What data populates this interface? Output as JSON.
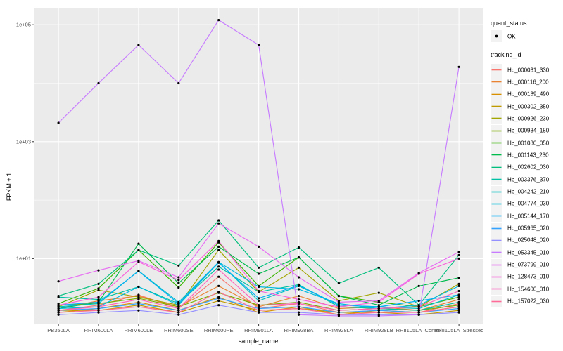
{
  "figure": {
    "background": "#FFFFFF",
    "panel_bg": "#EBEBEB",
    "grid_color": "#FFFFFF",
    "tick_color": "#333333",
    "tick_label_color": "#4D4D4D",
    "point_color": "#000000",
    "legend_key_bg": "#F2F2F2"
  },
  "axes": {
    "x": {
      "title": "sample_name"
    },
    "y": {
      "title": "FPKM + 1",
      "ticks": [
        {
          "label": "1e+05",
          "value": 100000
        },
        {
          "label": "1e+03",
          "value": 1000
        },
        {
          "label": "1e+01",
          "value": 10
        }
      ],
      "minor": [
        1,
        100,
        10000
      ]
    }
  },
  "legend": {
    "quant_status": {
      "title": "quant_status",
      "items": [
        {
          "label": "OK",
          "symbol": "black-point"
        }
      ]
    },
    "tracking_id": {
      "title": "tracking_id"
    }
  },
  "chart_data": {
    "type": "line",
    "title": "",
    "xlabel": "sample_name",
    "ylabel": "FPKM + 1",
    "y_scale": "log10",
    "ylim": [
      0.77,
      195000
    ],
    "grid": true,
    "legend_position": "right",
    "quant_status_all_points": "OK",
    "x_categories": [
      "PB350LA",
      "RRIM600LA",
      "RRIM600LE",
      "RRIM600SE",
      "RRIM600PE",
      "RRIM901LA",
      "RRIM928BA",
      "RRIM928LA",
      "RRIM928LB",
      "RRII105LA_Control",
      "RRII105LA_Stressed"
    ],
    "series": [
      {
        "name": "Hb_000031_330",
        "color": "#F8766D",
        "values": [
          1.3,
          1.6,
          2.4,
          1.4,
          4.9,
          1.4,
          1.7,
          1.2,
          1.3,
          1.2,
          1.7
        ]
      },
      {
        "name": "Hb_000116_200",
        "color": "#EA8331",
        "values": [
          1.4,
          1.9,
          2.3,
          1.5,
          3.4,
          1.5,
          2.3,
          1.4,
          1.5,
          1.3,
          2.0
        ]
      },
      {
        "name": "Hb_000139_490",
        "color": "#D89000",
        "values": [
          1.2,
          1.4,
          1.8,
          1.3,
          2.2,
          1.2,
          1.5,
          1.1,
          1.3,
          1.2,
          1.5
        ]
      },
      {
        "name": "Hb_000302_350",
        "color": "#C09B00",
        "values": [
          1.3,
          1.3,
          1.6,
          1.2,
          1.9,
          1.3,
          1.4,
          1.2,
          1.2,
          1.1,
          1.3
        ]
      },
      {
        "name": "Hb_000926_230",
        "color": "#A3A500",
        "values": [
          1.5,
          2.9,
          2.2,
          1.6,
          14,
          2.7,
          7.0,
          1.9,
          2.6,
          1.5,
          3.7
        ]
      },
      {
        "name": "Hb_000934_150",
        "color": "#7CAE00",
        "values": [
          1.6,
          1.7,
          2.1,
          1.5,
          2.6,
          1.6,
          1.8,
          1.3,
          1.4,
          1.3,
          1.6
        ]
      },
      {
        "name": "Hb_001080_050",
        "color": "#39B600",
        "values": [
          1.7,
          3.1,
          14,
          3.2,
          19,
          3.4,
          10.5,
          2.3,
          1.8,
          1.5,
          2.2
        ]
      },
      {
        "name": "Hb_001143_230",
        "color": "#00BB4E",
        "values": [
          1.4,
          1.8,
          18,
          3.8,
          16,
          5.5,
          10.5,
          2.3,
          1.6,
          3.4,
          4.7
        ]
      },
      {
        "name": "Hb_002602_030",
        "color": "#00BF7D",
        "values": [
          2.3,
          3.7,
          14,
          7.6,
          45,
          7.0,
          15.5,
          3.8,
          7.0,
          1.6,
          11.5
        ]
      },
      {
        "name": "Hb_003376_370",
        "color": "#00C1A3",
        "values": [
          2.2,
          2.0,
          3.3,
          1.7,
          7.3,
          2.7,
          3.6,
          1.5,
          1.4,
          1.3,
          1.8
        ]
      },
      {
        "name": "Hb_004242_210",
        "color": "#00BFC4",
        "values": [
          1.5,
          1.7,
          6.2,
          1.8,
          8.7,
          1.9,
          3.4,
          1.6,
          1.5,
          1.4,
          2.4
        ]
      },
      {
        "name": "Hb_004774_030",
        "color": "#00BAE0",
        "values": [
          1.4,
          1.5,
          3.3,
          1.6,
          8.7,
          3.3,
          3.0,
          1.7,
          1.4,
          1.6,
          3.4
        ]
      },
      {
        "name": "Hb_005144_170",
        "color": "#00B0F6",
        "values": [
          1.6,
          1.8,
          6.1,
          1.7,
          8.5,
          2.1,
          3.5,
          1.6,
          1.5,
          1.9,
          2.4
        ]
      },
      {
        "name": "Hb_005965_020",
        "color": "#35A2FF",
        "values": [
          1.3,
          1.4,
          1.7,
          1.3,
          2.1,
          1.4,
          1.5,
          1.2,
          1.3,
          1.2,
          1.4
        ]
      },
      {
        "name": "Hb_025048_020",
        "color": "#9590FF",
        "values": [
          1.1,
          1.2,
          1.3,
          1.1,
          1.6,
          1.2,
          1.2,
          1.1,
          1.1,
          1.1,
          1.2
        ]
      },
      {
        "name": "Hb_053345_010",
        "color": "#C77CFF",
        "values": [
          2100,
          10000,
          45000,
          10000,
          120000,
          45000,
          1.1,
          1.05,
          1.05,
          1.1,
          19000
        ]
      },
      {
        "name": "Hb_073799_010",
        "color": "#E76BF3",
        "values": [
          4.1,
          6.3,
          9.2,
          4.8,
          40,
          16,
          4.8,
          1.8,
          1.9,
          5.7,
          13
        ]
      },
      {
        "name": "Hb_128473_010",
        "color": "#FA62DB",
        "values": [
          1.6,
          2.2,
          8.8,
          4.3,
          20,
          2.8,
          2.0,
          1.5,
          1.8,
          5.5,
          10
        ]
      },
      {
        "name": "Hb_154600_010",
        "color": "#FF62BC",
        "values": [
          1.3,
          1.5,
          2.0,
          1.4,
          6.5,
          1.6,
          1.7,
          1.3,
          1.4,
          1.5,
          2.8
        ]
      },
      {
        "name": "Hb_157022_030",
        "color": "#FF6A98",
        "values": [
          1.2,
          1.3,
          1.5,
          1.2,
          2.7,
          1.3,
          1.4,
          1.1,
          1.2,
          1.2,
          1.5
        ]
      }
    ]
  }
}
